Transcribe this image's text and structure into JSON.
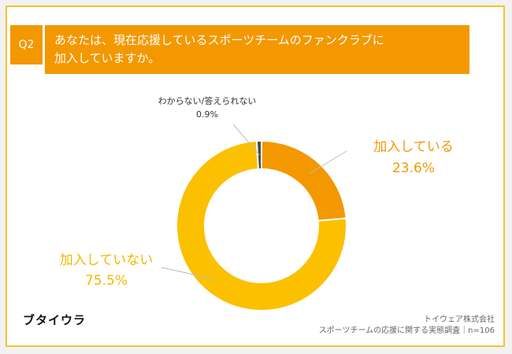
{
  "question": {
    "number": "Q2",
    "lines": [
      "あなたは、現在応援しているスポーツチームのファンクラブに",
      "加入していますか。"
    ]
  },
  "chart_data": {
    "type": "pie",
    "donut": true,
    "categories": [
      "加入している",
      "加入していない",
      "わからない/答えられない"
    ],
    "values": [
      23.6,
      75.5,
      0.9
    ],
    "value_labels": [
      "23.6%",
      "75.5%",
      "0.9%"
    ],
    "colors": [
      "#f39800",
      "#fbc000",
      "#4a4a4a"
    ],
    "title": "",
    "legend": "none"
  },
  "branding": {
    "logo": "ブタイウラ"
  },
  "footer": {
    "company": "トイウェア株式会社",
    "survey": "スポーツチームの応援に関する実態調査｜n=106"
  },
  "colors": {
    "accent": "#f39800",
    "border": "#f5c230"
  }
}
